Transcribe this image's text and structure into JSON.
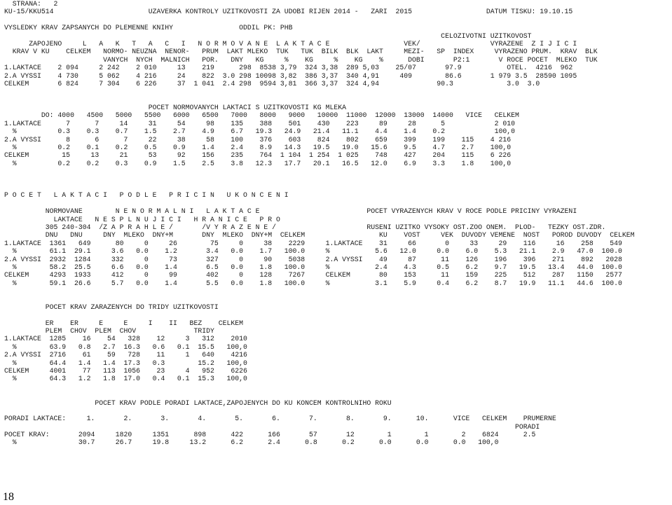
{
  "page_number": "18",
  "report_lines": [
    "  STRANA:   2",
    "KU-15/KKU514                       UZAVERKA KONTROLY UZITKOVOSTI ZA UDOBI RIJEN 2014 -   ZARI  2015                  DATUM TISKU: 19.10.15",
    "",
    "VYSLEDKY KRAV ZAPSANYCH DO PLEMENNE KNIHY                ODDIL PK: PHB",
    "                                                                                                          CELOZIVOTNI UZITKOVOST",
    "      ZAPOJENO     L   A   K   T   A   C   I   N O R M O V A N E  L A K T A C E                  VEK/                 VYRAZENE  Z I J I C I",
    "  KRAV V KU    CELKEM   NORMO- NEUZNA  NENOR-   PRUM  LAKT MLEKO  TUK   TUK  BILK  BLK  LAKT     MEZI-   SP  INDEX     VYRAZENO PRUM.  KRAV  BLK",
    "                        VANYCH  NYCH  MALNICH   POR.   DNY   KG     %    KG     %    KG    %      DOBI       P2:1       V ROCE POCET  MLEKO  TUK",
    "1.LAKTACE    2 094     2 242    2 010     13    219      298  8538 3,79  324 3,38  289 5,03    25/07       97.9           OTEL.  4216  962",
    "2.A VYSSI    4 730     5 062    4 216     24    822  3.0 298 10098 3,82  386 3,37  340 4,91     409        86.6       1 979 3.5  28590 1095",
    "CELKEM       6 824     7 304    6 226     37  1 041  2.4 298  9594 3,81  366 3,37  324 4,94              90.3             3.0  3.0",
    "",
    "",
    "                                   POCET NORMOVANYCH LAKTACI S UZITKOVOSTI KG MLEKA",
    "         DO: 4000   4500   5000   5500   6000   6500   7000   8000   9000   10000  11000  12000  13000  14000   VICE   CELKEM",
    "1.LAKTACE      7      7     14     31     54     98    135    388    501    430    223     89     28      5            2 010",
    "  %          0.3    0.3    0.7    1.5    2.7    4.9    6.7   19.3   24.9   21.4   11.1    4.4    1.4    0.2            100,0",
    "2.A VYSSI      8      6      7     22     38     58    100    376    603    824    802    659    399    199    115    4 216",
    "  %          0.2    0.1    0.2    0.5    0.9    1.4    2.4    8.9   14.3   19.5   19.0   15.6    9.5    4.7    2.7    100,0",
    "CELKEM        15     13     21     53     92    156    235    764  1 104  1 254  1 025    748    427    204    115    6 226",
    "  %          0.2    0.2    0.3    0.9    1.5    2.5    3.8   12.3   17.7   20.1   16.5   12.0    6.9    3.3    1.8    100,0",
    "",
    "",
    "",
    "P O C E T   L A K T A C I   P O D L E   P R I C I N   U K O N C E N I",
    "",
    "          NORMOVANE        N E N O R M A L N I   L A K T A C E                          POCET VYRAZENYCH KRAV V ROCE PODLE PRICINY VYRAZENI",
    "            LAKTACE   N E S P L N U J I C I   H R A N I C E   P R O",
    "          305 240-304  /Z A P R A H L E /       /V Y R A Z E N E /                      RUSENI UZITKO VYSOKY OST.ZOO ONEM.  PLOD-   TEZKY OST.ZDR.",
    "          DNU   DNU     DNY  MLEKO  DNY+M       DNY  MLEKO  DNY+M  CELKEM                  KU    VOST     VEK  DUVODY VEMENE  NOST   POROD DUVODY  CELKEM",
    "1.LAKTACE  1361   649      80     0     26        75     0     38    2229     1.LAKTACE    31     66       0     33     29    116     16    258    549",
    "  %        61.1  29.1     3.6   0.0    1.2       3.4   0.0    1.7   100.0     %           5.6   12.0     0.0    6.0    5.3   21.1    2.9   47.0  100.0",
    "2.A VYSSI  2932  1284     332     0     73       327     0     90    5038     2.A VYSSI    49     87      11    126    196    396    271    892   2028",
    "  %        58.2  25.5     6.6   0.0    1.4       6.5   0.0    1.8   100.0     %           2.4    4.3     0.5    6.2    9.7   19.5   13.4   44.0  100.0",
    "CELKEM     4293  1933     412     0     99       402     0    128    7267     CELKEM       80    153      11    159    225    512    287   1150   2577",
    "  %        59.1  26.6     5.7   0.0    1.4       5.5   0.0    1.8   100.0     %           3.1    5.9     0.4    6.2    8.7   19.9   11.1   44.6  100.0",
    "",
    "",
    "          POCET KRAV ZARAZENYCH DO TRIDY UZITKOVOSTI",
    "",
    "          ER    ER     E     E     I    II   BEZ    CELKEM",
    "          PLEM  CHOV  PLEM  CHOV              TRIDY",
    "1.LAKTACE  1285    16    54   328    12     3   312    2010",
    "  %        63.9   0.8   2.7  16.3   0.6   0.1  15.5   100,0",
    "2.A VYSSI  2716    61    59   728    11     1   640    4216",
    "  %        64.4   1.4   1.4  17.3   0.3        15.2   100,0",
    "CELKEM     4001    77   113  1056    23     4   952    6226",
    "  %        64.3   1.2   1.8  17.0   0.4   0.1  15.3   100,0",
    "",
    "",
    "                      POCET KRAV PODLE PORADI LAKTACE,ZAPOJENYCH DO KU KONCEM KONTROLNIHO ROKU",
    "",
    "PORADI LAKTACE:     1.       2.       3.       4.       5.       6.       7.       8.       9.      10.      VICE   CELKEM    PRUMERNE",
    "                                                                                                                            PORADI",
    "POCET KRAV:       2094     1820     1351      898      422      166       57       12        1        1        2    6824      2.5",
    "  %               30.7     26.7     19.8     13.2      6.2      2.4      0.8      0.2      0.0      0.0      0.0   100,0"
  ]
}
